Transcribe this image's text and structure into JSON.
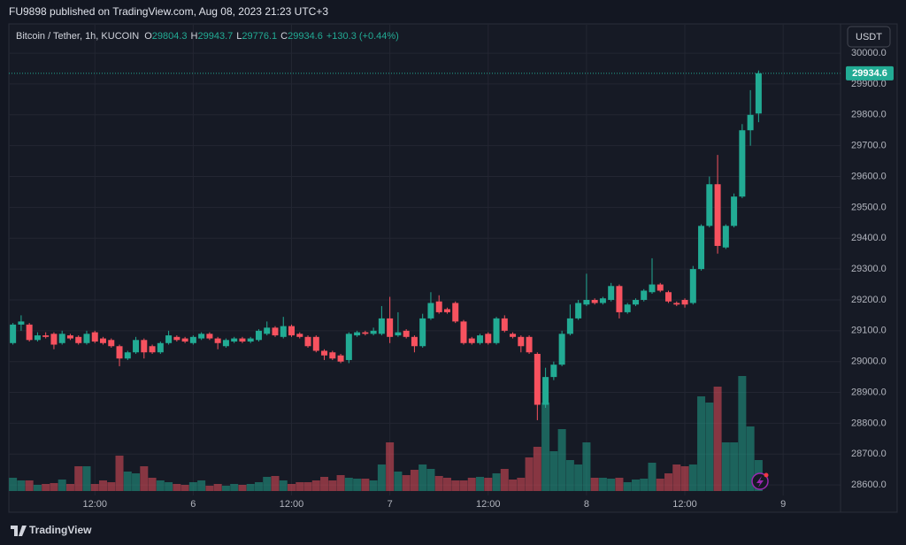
{
  "header": {
    "publisher": "FU9898 published on TradingView.com, Aug 08, 2023 21:23 UTC+3",
    "footer_brand": "TradingView"
  },
  "chart_data": {
    "type": "candlestick",
    "title": "Bitcoin / Tether, 1h, KUCOIN",
    "ohlc_labels": [
      "O",
      "H",
      "L",
      "C"
    ],
    "change_label": "+130.3 (+0.44%)",
    "currency_button": "USDT",
    "up_color": "#22ab94",
    "down_color": "#f7525f",
    "open": [
      29060,
      29120,
      29120,
      29070,
      29085,
      29090,
      29060,
      29085,
      29080,
      29060,
      29095,
      29075,
      29070,
      29050,
      29010,
      29030,
      29070,
      29050,
      29030,
      29060,
      29080,
      29075,
      29060,
      29075,
      29090,
      29075,
      29050,
      29065,
      29075,
      29065,
      29070,
      29090,
      29110,
      29080,
      29115,
      29090,
      29080,
      29080,
      29035,
      29030,
      29020,
      29005,
      29085,
      29095,
      29090,
      29090,
      29140,
      29085,
      29100,
      29080,
      29050,
      29140,
      29195,
      29170,
      29190,
      29130,
      29075,
      29060,
      29090,
      29060,
      29140,
      29090,
      29080,
      29080,
      29025,
      28860,
      28950,
      28990,
      29090,
      29140,
      29185,
      29200,
      29190,
      29200,
      29245,
      29160,
      29185,
      29200,
      29225,
      29250,
      29225,
      29190,
      29200,
      29190,
      29300,
      29440,
      29575,
      29370,
      29440,
      29535,
      29750,
      29804.3
    ],
    "high": [
      29125,
      29150,
      29125,
      29095,
      29095,
      29095,
      29100,
      29090,
      29085,
      29100,
      29100,
      29080,
      29075,
      29055,
      29035,
      29080,
      29075,
      29055,
      29065,
      29100,
      29085,
      29080,
      29085,
      29095,
      29095,
      29080,
      29075,
      29080,
      29080,
      29080,
      29105,
      29130,
      29115,
      29145,
      29120,
      29095,
      29085,
      29085,
      29040,
      29035,
      29025,
      29095,
      29100,
      29100,
      29110,
      29180,
      29210,
      29160,
      29105,
      29085,
      29155,
      29225,
      29215,
      29175,
      29195,
      29135,
      29080,
      29090,
      29095,
      29145,
      29150,
      29095,
      29085,
      29085,
      29030,
      28980,
      29000,
      29100,
      29185,
      29200,
      29285,
      29205,
      29210,
      29255,
      29250,
      29190,
      29205,
      29235,
      29335,
      29255,
      29230,
      29195,
      29205,
      29310,
      29445,
      29600,
      29670,
      29445,
      29545,
      29770,
      29880,
      29943.7
    ],
    "low": [
      29055,
      29100,
      29065,
      29065,
      29075,
      29040,
      29055,
      29070,
      29055,
      29055,
      29060,
      29055,
      29045,
      28985,
      29005,
      29025,
      29010,
      29025,
      29025,
      29055,
      29065,
      29060,
      29055,
      29070,
      29070,
      29040,
      29045,
      29060,
      29060,
      29060,
      29065,
      29085,
      29080,
      29075,
      29080,
      29075,
      29045,
      29030,
      29005,
      29005,
      28995,
      28995,
      29080,
      29085,
      29085,
      29085,
      29060,
      29080,
      29075,
      29030,
      29045,
      29135,
      29155,
      29155,
      29125,
      29055,
      29055,
      29055,
      29055,
      29055,
      29095,
      29075,
      29030,
      29025,
      28810,
      28850,
      28940,
      28985,
      29085,
      29135,
      29180,
      29185,
      29185,
      29195,
      29140,
      29155,
      29180,
      29195,
      29220,
      29225,
      29190,
      29180,
      29175,
      29185,
      29295,
      29435,
      29350,
      29365,
      29435,
      29530,
      29700,
      29776.1
    ],
    "close": [
      29120,
      29130,
      29070,
      29085,
      29080,
      29055,
      29090,
      29075,
      29060,
      29090,
      29065,
      29060,
      29050,
      29010,
      29030,
      29070,
      29030,
      29030,
      29060,
      29085,
      29070,
      29065,
      29080,
      29090,
      29075,
      29060,
      29070,
      29075,
      29065,
      29075,
      29100,
      29110,
      29085,
      29115,
      29085,
      29080,
      29050,
      29035,
      29020,
      29010,
      29000,
      29090,
      29095,
      29090,
      29100,
      29140,
      29080,
      29095,
      29080,
      29050,
      29140,
      29190,
      29160,
      29160,
      29130,
      29060,
      29060,
      29085,
      29060,
      29140,
      29100,
      29080,
      29050,
      29030,
      28860,
      28950,
      28990,
      29090,
      29140,
      29190,
      29200,
      29190,
      29205,
      29245,
      29160,
      29185,
      29200,
      29230,
      29250,
      29230,
      29195,
      29185,
      29185,
      29300,
      29440,
      29575,
      29375,
      29440,
      29535,
      29750,
      29800,
      29934.6
    ],
    "volume": [
      15,
      12,
      12,
      7,
      8,
      9,
      13,
      8,
      28,
      28,
      8,
      12,
      10,
      40,
      22,
      20,
      28,
      15,
      12,
      10,
      8,
      7,
      10,
      12,
      6,
      8,
      6,
      8,
      7,
      8,
      10,
      16,
      17,
      12,
      8,
      10,
      10,
      12,
      16,
      12,
      18,
      15,
      14,
      14,
      12,
      30,
      55,
      22,
      18,
      24,
      30,
      25,
      17,
      15,
      12,
      12,
      15,
      16,
      15,
      20,
      25,
      13,
      15,
      38,
      50,
      100,
      45,
      70,
      35,
      30,
      55,
      15,
      15,
      14,
      15,
      10,
      13,
      14,
      32,
      14,
      20,
      30,
      28,
      30,
      107,
      100,
      118,
      55,
      55,
      130,
      73,
      35
    ],
    "xlim": [
      -0.5,
      101
    ],
    "xticks": [
      {
        "value": 10,
        "label": "12:00"
      },
      {
        "value": 22,
        "label": "6"
      },
      {
        "value": 34,
        "label": "12:00"
      },
      {
        "value": 46,
        "label": "7"
      },
      {
        "value": 58,
        "label": "12:00"
      },
      {
        "value": 70,
        "label": "8"
      },
      {
        "value": 82,
        "label": "12:00"
      },
      {
        "value": 94,
        "label": "9"
      }
    ],
    "ylim": [
      28566,
      30092
    ],
    "yticks": [
      {
        "value": 28600,
        "label": "28600.0"
      },
      {
        "value": 28700,
        "label": "28700.0"
      },
      {
        "value": 28800,
        "label": "28800.0"
      },
      {
        "value": 28900,
        "label": "28900.0"
      },
      {
        "value": 29000,
        "label": "29000.0"
      },
      {
        "value": 29100,
        "label": "29100.0"
      },
      {
        "value": 29200,
        "label": "29200.0"
      },
      {
        "value": 29300,
        "label": "29300.0"
      },
      {
        "value": 29400,
        "label": "29400.0"
      },
      {
        "value": 29500,
        "label": "29500.0"
      },
      {
        "value": 29600,
        "label": "29600.0"
      },
      {
        "value": 29700,
        "label": "29700.0"
      },
      {
        "value": 29800,
        "label": "29800.0"
      },
      {
        "value": 29900,
        "label": "29900.0"
      },
      {
        "value": 30000,
        "label": "30000.0"
      }
    ],
    "grid": true
  }
}
